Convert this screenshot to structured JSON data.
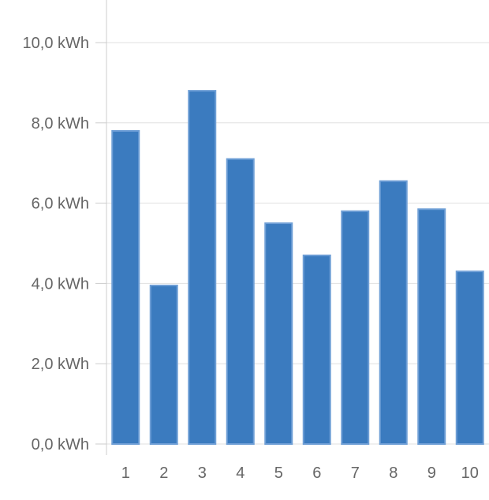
{
  "chart_data": {
    "type": "bar",
    "title": "",
    "xlabel": "",
    "ylabel": "",
    "categories": [
      "1",
      "2",
      "3",
      "4",
      "5",
      "6",
      "7",
      "8",
      "9",
      "10"
    ],
    "values": [
      7.8,
      3.95,
      8.8,
      7.1,
      5.5,
      4.7,
      5.8,
      6.55,
      5.85,
      4.3
    ],
    "ylim": [
      0,
      10.0
    ],
    "yticks": [
      0,
      2,
      4,
      6,
      8,
      10
    ],
    "ytick_labels": [
      "0,0 kWh",
      "2,0 kWh",
      "4,0 kWh",
      "6,0 kWh",
      "8,0 kWh",
      "10,0 kWh"
    ],
    "grid": true,
    "legend": "none",
    "colors": {
      "bar_fill": "#3b7bbf",
      "bar_stroke": "#6f9fd6",
      "grid": "#e0e0e0",
      "axis": "#cccccc",
      "tick_text": "#666666"
    }
  }
}
